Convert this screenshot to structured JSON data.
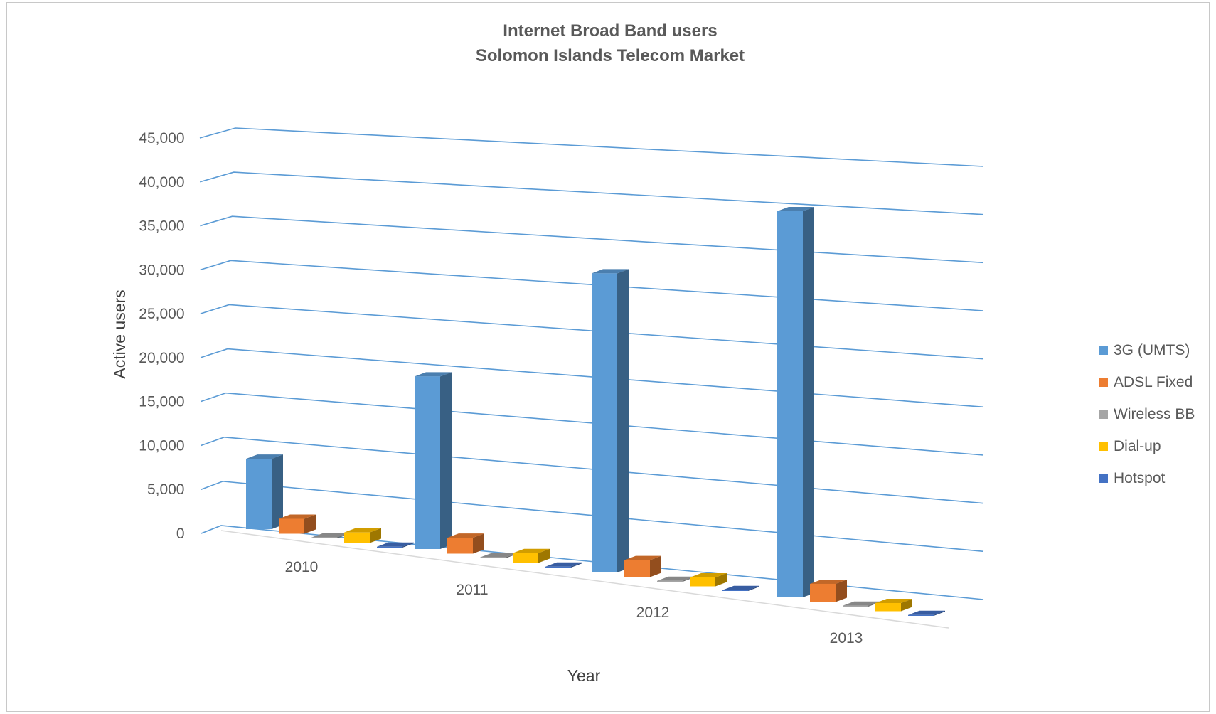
{
  "chart_data": {
    "type": "bar",
    "title": "Internet Broad Band users",
    "subtitle": "Solomon Islands Telecom Market",
    "xlabel": "Year",
    "ylabel": "Active users",
    "ylim": [
      0,
      45000
    ],
    "y_ticks": [
      "0",
      "5,000",
      "10,000",
      "15,000",
      "20,000",
      "25,000",
      "30,000",
      "35,000",
      "40,000",
      "45,000"
    ],
    "categories": [
      "2010",
      "2011",
      "2012",
      "2013"
    ],
    "grid": true,
    "legend": "right",
    "three_d": true,
    "series": [
      {
        "name": "3G (UMTS)",
        "color": "#5b9bd5",
        "values": [
          8000,
          19500,
          33500,
          42500
        ]
      },
      {
        "name": "ADSL Fixed",
        "color": "#ed7d31",
        "values": [
          1700,
          1800,
          1900,
          2000
        ]
      },
      {
        "name": "Wireless BB",
        "color": "#a5a5a5",
        "values": [
          100,
          100,
          100,
          100
        ]
      },
      {
        "name": "Dial-up",
        "color": "#ffc000",
        "values": [
          1200,
          1100,
          1000,
          900
        ]
      },
      {
        "name": "Hotspot",
        "color": "#4472c4",
        "values": [
          100,
          100,
          100,
          100
        ]
      }
    ]
  }
}
